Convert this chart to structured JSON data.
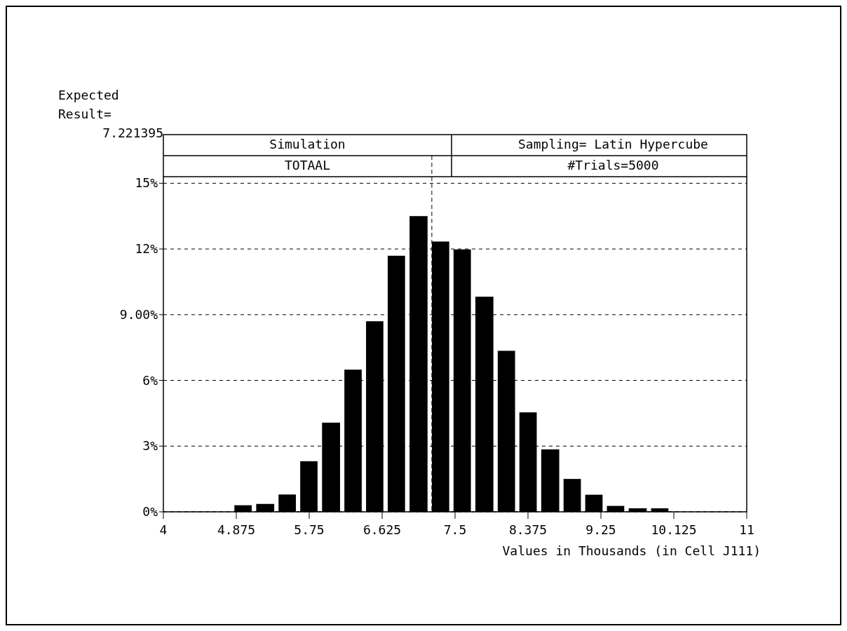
{
  "chart_data": {
    "type": "histogram",
    "xlabel": "Values in Thousands (in Cell J111)",
    "bins": [
      4.8,
      5.06,
      5.33,
      5.59,
      5.85,
      6.12,
      6.38,
      6.64,
      6.9,
      7.17,
      7.43,
      7.69,
      7.96,
      8.22,
      8.48,
      8.75,
      9.01,
      9.27,
      9.53,
      9.8,
      10.06
    ],
    "values": [
      0.3,
      0.36,
      0.79,
      2.31,
      4.07,
      6.49,
      8.7,
      11.69,
      13.5,
      12.34,
      11.98,
      9.82,
      7.35,
      4.54,
      2.85,
      1.5,
      0.78,
      0.27,
      0.16,
      0.16
    ],
    "color": "#000000",
    "xlim": [
      4,
      11
    ],
    "xticks": [
      4,
      4.875,
      5.75,
      6.625,
      7.5,
      8.375,
      9.25,
      10.125,
      11
    ],
    "ylim": [
      0,
      15.3
    ],
    "yticks": [
      {
        "value": 0,
        "label": "0%"
      },
      {
        "value": 3,
        "label": "3%"
      },
      {
        "value": 6,
        "label": "6%"
      },
      {
        "value": 9,
        "label": "9.00%"
      },
      {
        "value": 12,
        "label": "12%"
      },
      {
        "value": 15,
        "label": "15%"
      }
    ],
    "grid": "y",
    "ref_lines": [
      {
        "axis": "x",
        "value": 7.221395,
        "label": "Expected Result= 7.221395",
        "line_style": "dashed"
      }
    ],
    "annotations": [
      "Simulation",
      "Sampling= Latin Hypercube",
      "TOTAAL",
      "#Trials=5000"
    ]
  }
}
